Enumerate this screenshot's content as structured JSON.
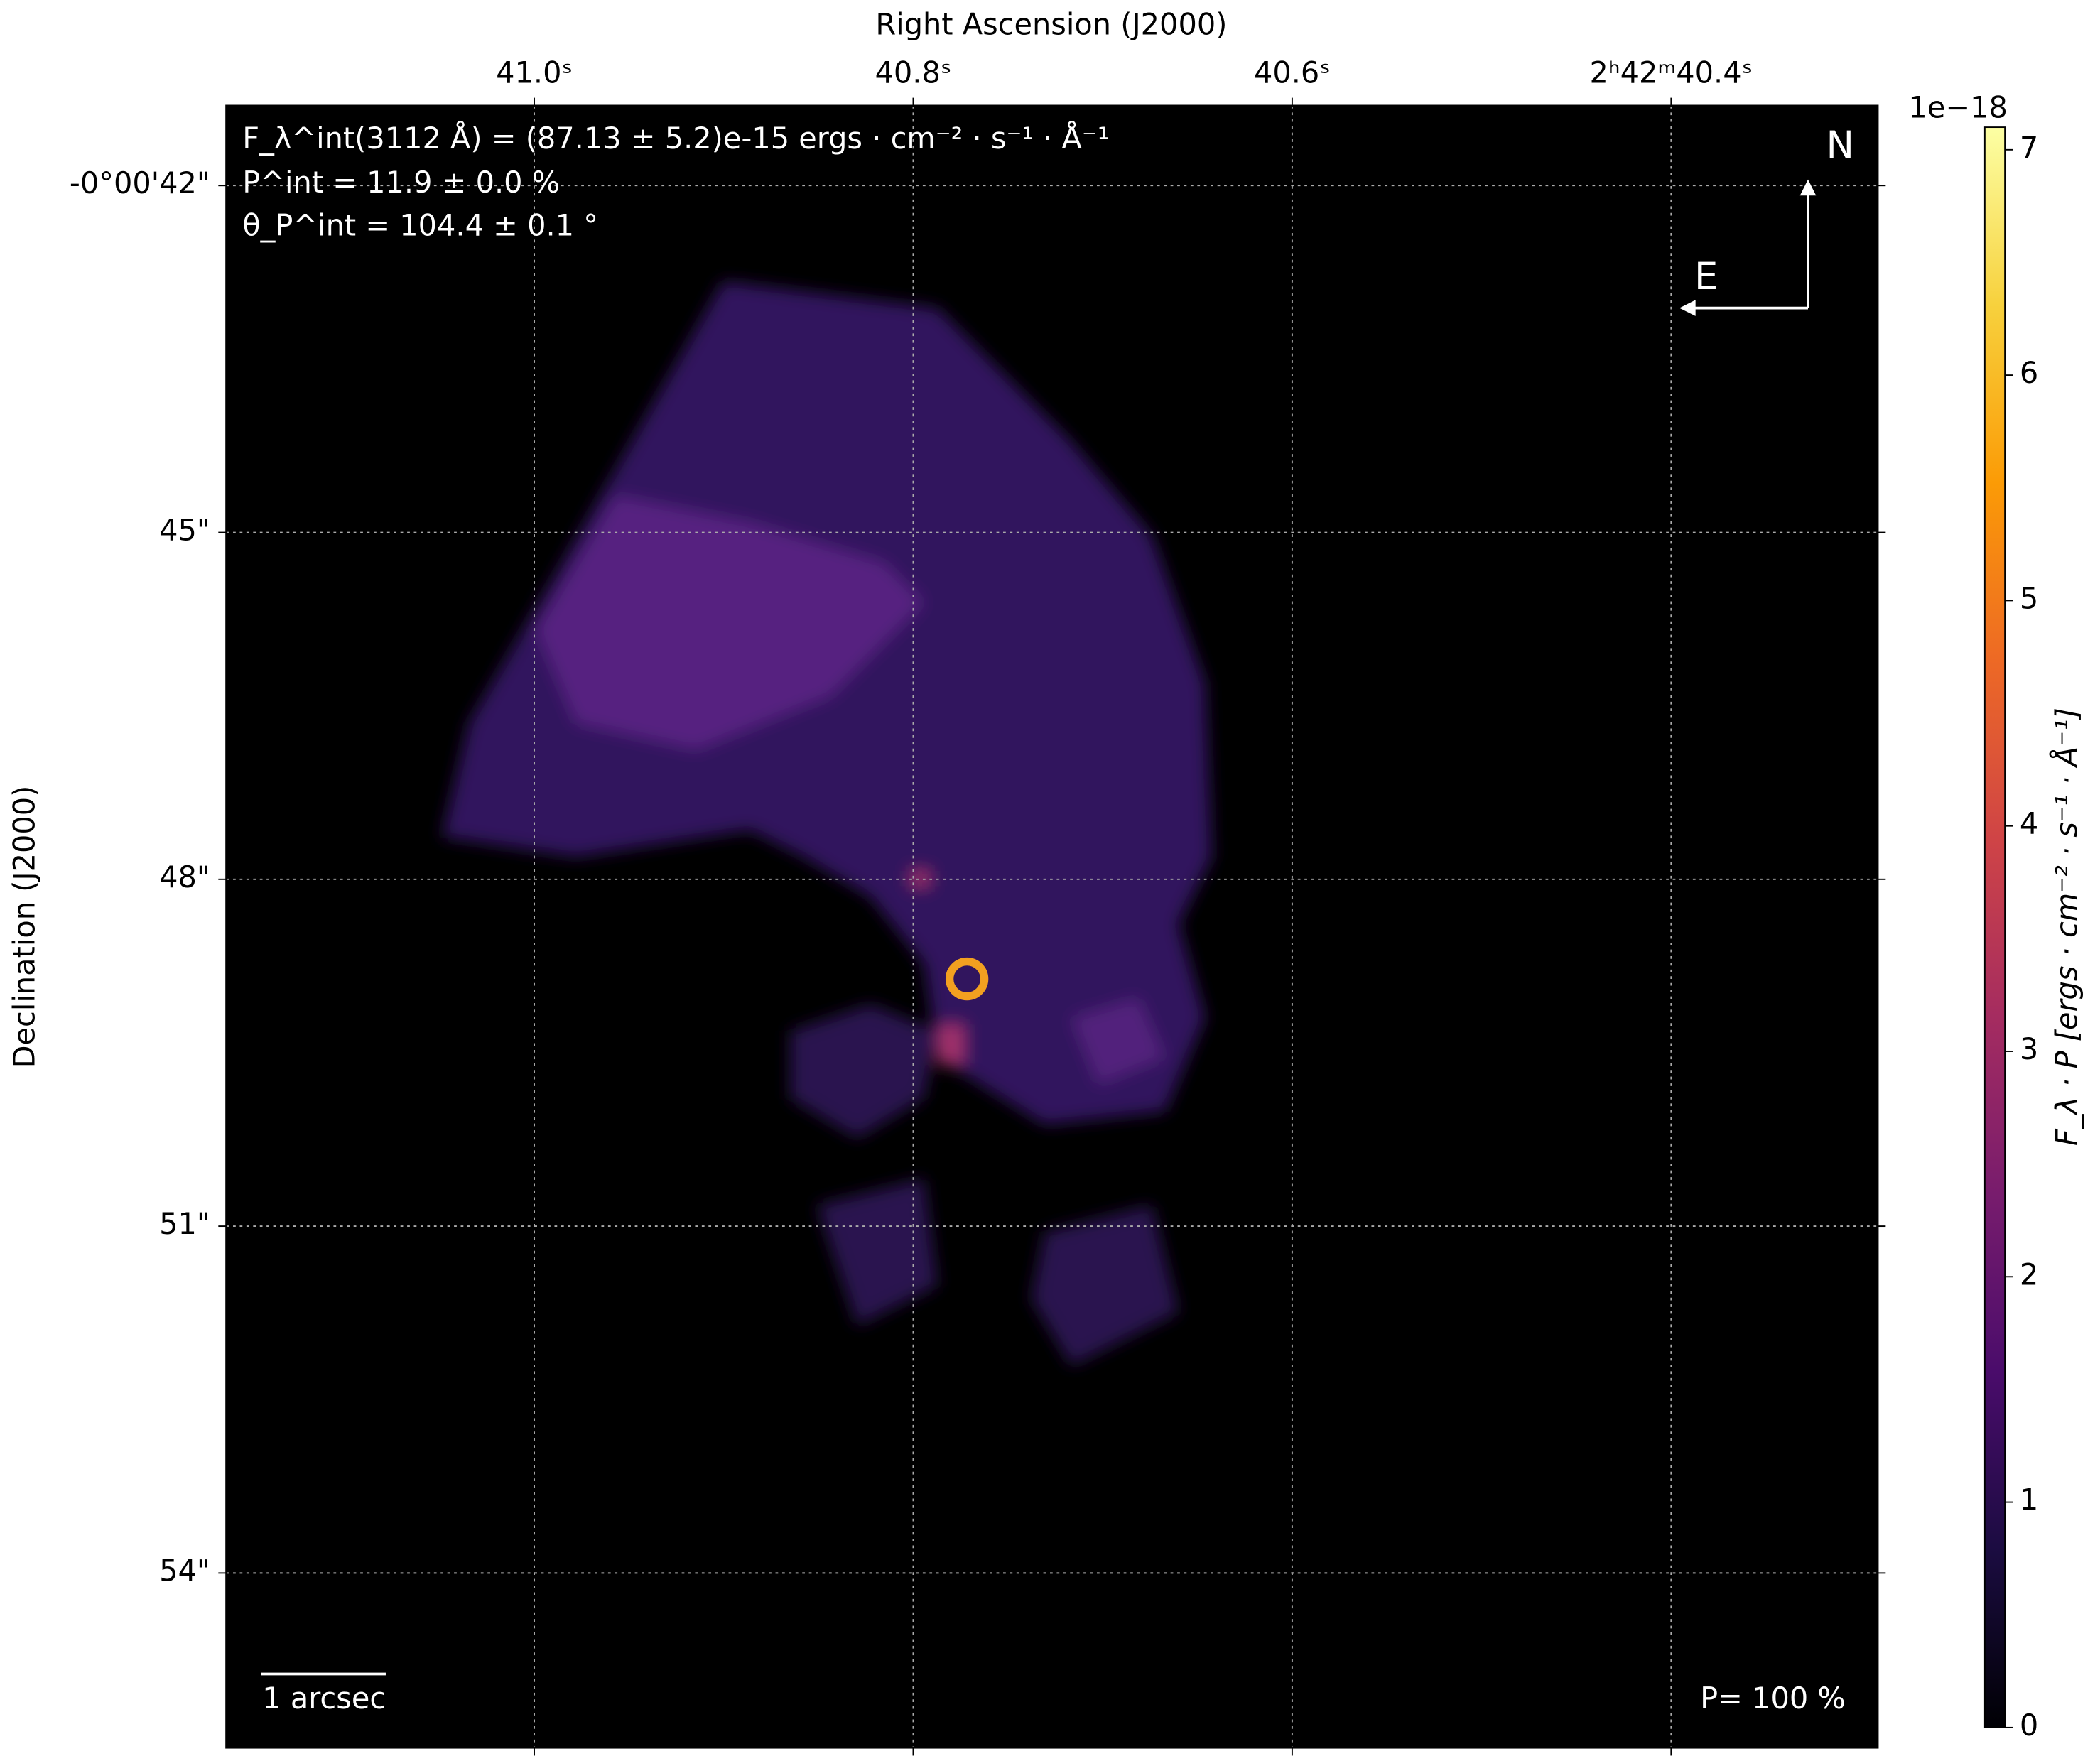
{
  "chart_data": {
    "type": "image",
    "xlabel": "Right Ascension (J2000)",
    "ylabel": "Declination (J2000)",
    "xlim": [
      41.1625,
      40.291
    ],
    "xticks": [
      {
        "value": 41.0,
        "label": "41.0ˢ"
      },
      {
        "value": 40.8,
        "label": "40.8ˢ"
      },
      {
        "value": 40.6,
        "label": "40.6ˢ"
      },
      {
        "value": 40.4,
        "label": "2ʰ42ᵐ40.4ˢ"
      }
    ],
    "ylim": [
      55.51,
      41.31
    ],
    "yticks": [
      {
        "value": 42,
        "label": "-0°00'42\""
      },
      {
        "value": 45,
        "label": "45\""
      },
      {
        "value": 48,
        "label": "48\""
      },
      {
        "value": 51,
        "label": "51\""
      },
      {
        "value": 54,
        "label": "54\""
      }
    ],
    "grid": true,
    "colormap": "inferno",
    "colorbar": {
      "label": "F_λ · P [ergs · cm⁻² · s⁻¹ · Å⁻¹]",
      "offset_label": "1e−18",
      "lim": [
        0,
        7.1
      ],
      "ticks": [
        0,
        1,
        2,
        3,
        4,
        5,
        6,
        7
      ]
    },
    "annotations": [
      "F_λ^int(3112 Å) = (87.13 ± 5.2)e-15 ergs · cm⁻² · s⁻¹ · Å⁻¹",
      "P^int = 11.9 ± 0.0 %",
      "θ_P^int = 104.4 ± 0.1 °"
    ],
    "compass": {
      "north": "N",
      "east": "E"
    },
    "scale_bar": "1 arcsec",
    "vector_scale": "P= 100 %"
  }
}
